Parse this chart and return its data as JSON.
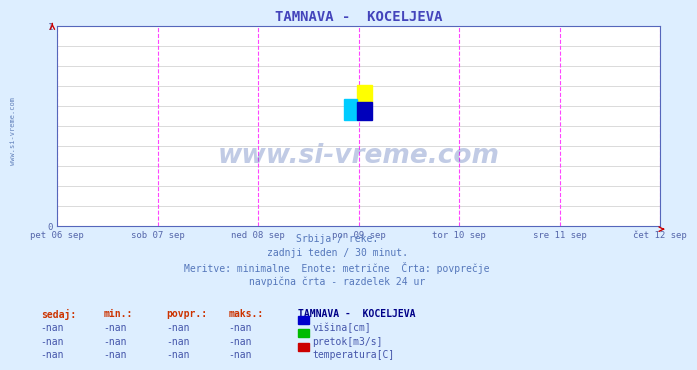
{
  "title": "TAMNAVA -  KOCELJEVA",
  "title_color": "#4444bb",
  "background_color": "#ddeeff",
  "plot_bg_color": "#ffffff",
  "grid_color": "#cccccc",
  "vline_color": "#ff44ff",
  "tick_label_color": "#5566aa",
  "subtitle_color": "#5577bb",
  "watermark_color": "#4466aa",
  "side_text": "www.si-vreme.com",
  "xlim": [
    0,
    1
  ],
  "ylim": [
    0,
    1
  ],
  "yticks": [
    0,
    1
  ],
  "x_tick_labels": [
    "pet 06 sep",
    "sob 07 sep",
    "ned 08 sep",
    "pon 09 sep",
    "tor 10 sep",
    "sre 11 sep",
    "čet 12 sep"
  ],
  "x_tick_positions": [
    0.0,
    0.1667,
    0.3333,
    0.5,
    0.6667,
    0.8333,
    1.0
  ],
  "vline_positions": [
    0.0,
    0.1667,
    0.3333,
    0.5,
    0.6667,
    0.8333,
    1.0
  ],
  "subtitle_lines": [
    "Srbija / reke.",
    "zadnji teden / 30 minut.",
    "Meritve: minimalne  Enote: metrične  Črta: povprečje",
    "navpična črta - razdelek 24 ur"
  ],
  "watermark_text": "www.si-vreme.com",
  "table_header_cols": [
    "sedaj:",
    "min.:",
    "povpr.:",
    "maks.:"
  ],
  "table_header_station": "TAMNAVA -  KOCELJEVA",
  "table_rows": [
    [
      "-nan",
      "-nan",
      "-nan",
      "-nan",
      "višina[cm]"
    ],
    [
      "-nan",
      "-nan",
      "-nan",
      "-nan",
      "pretok[m3/s]"
    ],
    [
      "-nan",
      "-nan",
      "-nan",
      "-nan",
      "temperatura[C]"
    ]
  ],
  "legend_colors": [
    "#0000cc",
    "#00bb00",
    "#cc0000"
  ],
  "arrow_color": "#cc0000",
  "logo_colors": [
    "#ffff00",
    "#00ccff",
    "#0000bb"
  ]
}
